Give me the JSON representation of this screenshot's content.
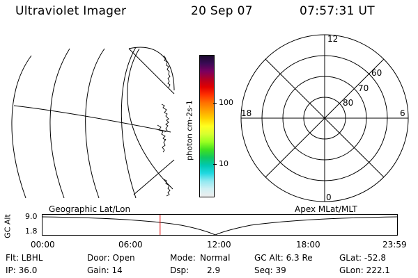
{
  "header": {
    "title": "Ultraviolet Imager",
    "date": "20 Sep 07",
    "time": "07:57:31 UT"
  },
  "colorbar": {
    "label": "photon cm-2s-1",
    "scale": "log",
    "ticks": [
      "100",
      "10"
    ],
    "colors": [
      "#1b0a2e",
      "#3a0a55",
      "#7a0060",
      "#b00025",
      "#e00000",
      "#ff3000",
      "#ff7000",
      "#ffa000",
      "#ffd000",
      "#ffff20",
      "#d8ff30",
      "#9aff20",
      "#40e020",
      "#10c860",
      "#00c8b0",
      "#20d8e0",
      "#90e8f0",
      "#d0f0f4",
      "#eeeeee"
    ]
  },
  "polar": {
    "mlt_labels": {
      "top": "12",
      "right": "6",
      "bottom": "0",
      "left": "18"
    },
    "lat_labels": [
      "60",
      "70",
      "80"
    ]
  },
  "orbit": {
    "ylabel": "GC Alt",
    "ymax": "9.0",
    "ymin": "1.8",
    "left_title": "Geographic Lat/Lon",
    "right_title": "Apex MLat/MLT",
    "xticks": [
      "00:00",
      "06:00",
      "12:00",
      "18:00",
      "23:59"
    ],
    "current_marker_hour": 7.96,
    "accent": "#e00000"
  },
  "status": {
    "flt": "Flt: LBHL",
    "ip": "IP: 36.0",
    "door": "Door: Open",
    "gain": "Gain: 14",
    "mode_label": "Mode:",
    "mode_value": "Normal",
    "dsp_label": "Dsp:",
    "dsp_value": "2.9",
    "gc_alt": "GC Alt: 6.3 Re",
    "seq": "Seq: 39",
    "glat": "GLat: -52.8",
    "glon": "GLon: 222.1"
  }
}
